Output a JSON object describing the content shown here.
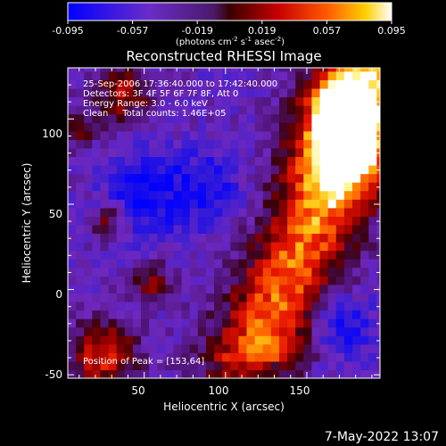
{
  "colorbar": {
    "ticks": [
      "-0.095",
      "-0.057",
      "-0.019",
      "0.019",
      "0.057",
      "0.095"
    ],
    "units_main": "(photons cm",
    "units_exp1": "-2",
    "units_mid1": " s",
    "units_exp2": "-1",
    "units_mid2": " asec",
    "units_exp3": "-2",
    "units_end": ")"
  },
  "chart_data": {
    "type": "heatmap",
    "title": "Reconstructed RHESSI Image",
    "xlabel": "Heliocentric X (arcsec)",
    "ylabel": "Heliocentric Y (arcsec)",
    "xlim": [
      3,
      195
    ],
    "ylim": [
      -52,
      130
    ],
    "xticks": [
      50,
      100,
      150
    ],
    "yticks": [
      -50,
      0,
      50,
      100
    ],
    "zlim": [
      -0.095,
      0.095
    ],
    "colormap": "blue-purple-red-yellow-white",
    "peak": [
      153,
      64
    ],
    "info_lines": [
      "25-Sep-2006 17:36:40.000 to 17:42:40.000",
      "Detectors: 3F 4F 5F 6F 7F 8F, Att 0",
      "Energy Range: 3.0 - 6.0 keV",
      "Clean     Total counts: 1.46E+05"
    ],
    "peak_label": "Position of Peak = [153,64]"
  },
  "footer": {
    "timestamp": "7-May-2022 13:07"
  }
}
